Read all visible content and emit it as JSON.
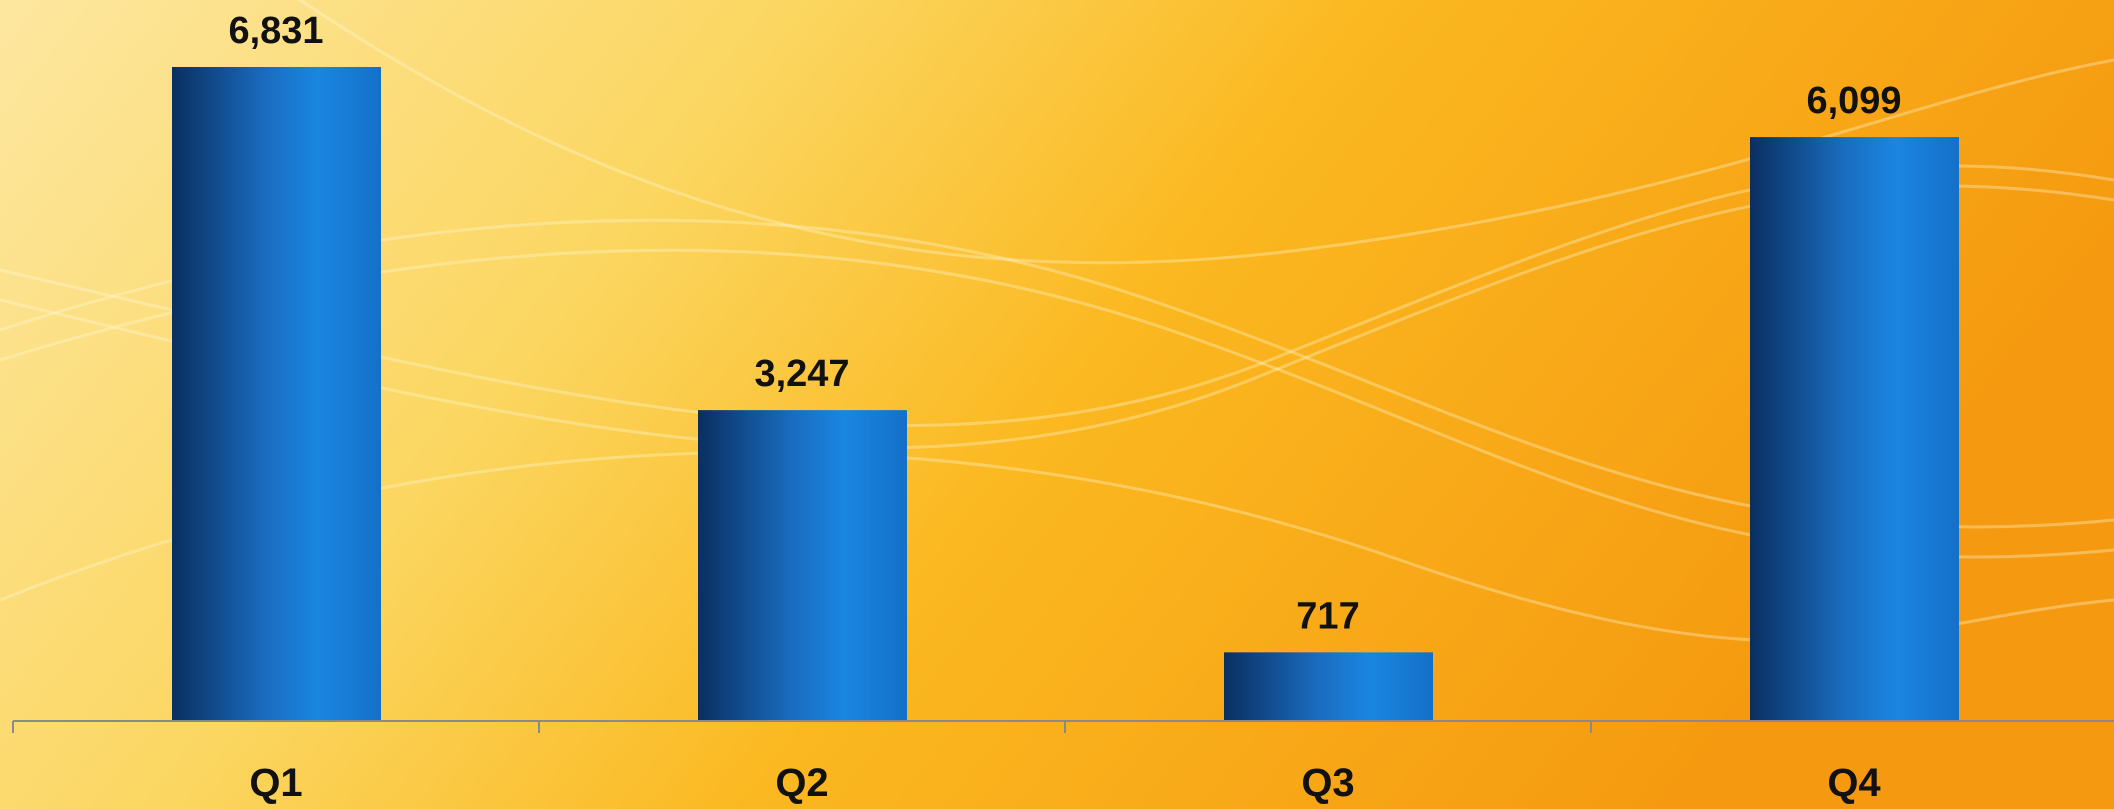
{
  "chart_data": {
    "type": "bar",
    "categories": [
      "Q1",
      "Q2",
      "Q3",
      "Q4"
    ],
    "values": [
      6831,
      3247,
      717,
      6099
    ],
    "value_labels": [
      "6,831",
      "3,247",
      "717",
      "6,099"
    ],
    "color": "#1a7fd4"
  }
}
